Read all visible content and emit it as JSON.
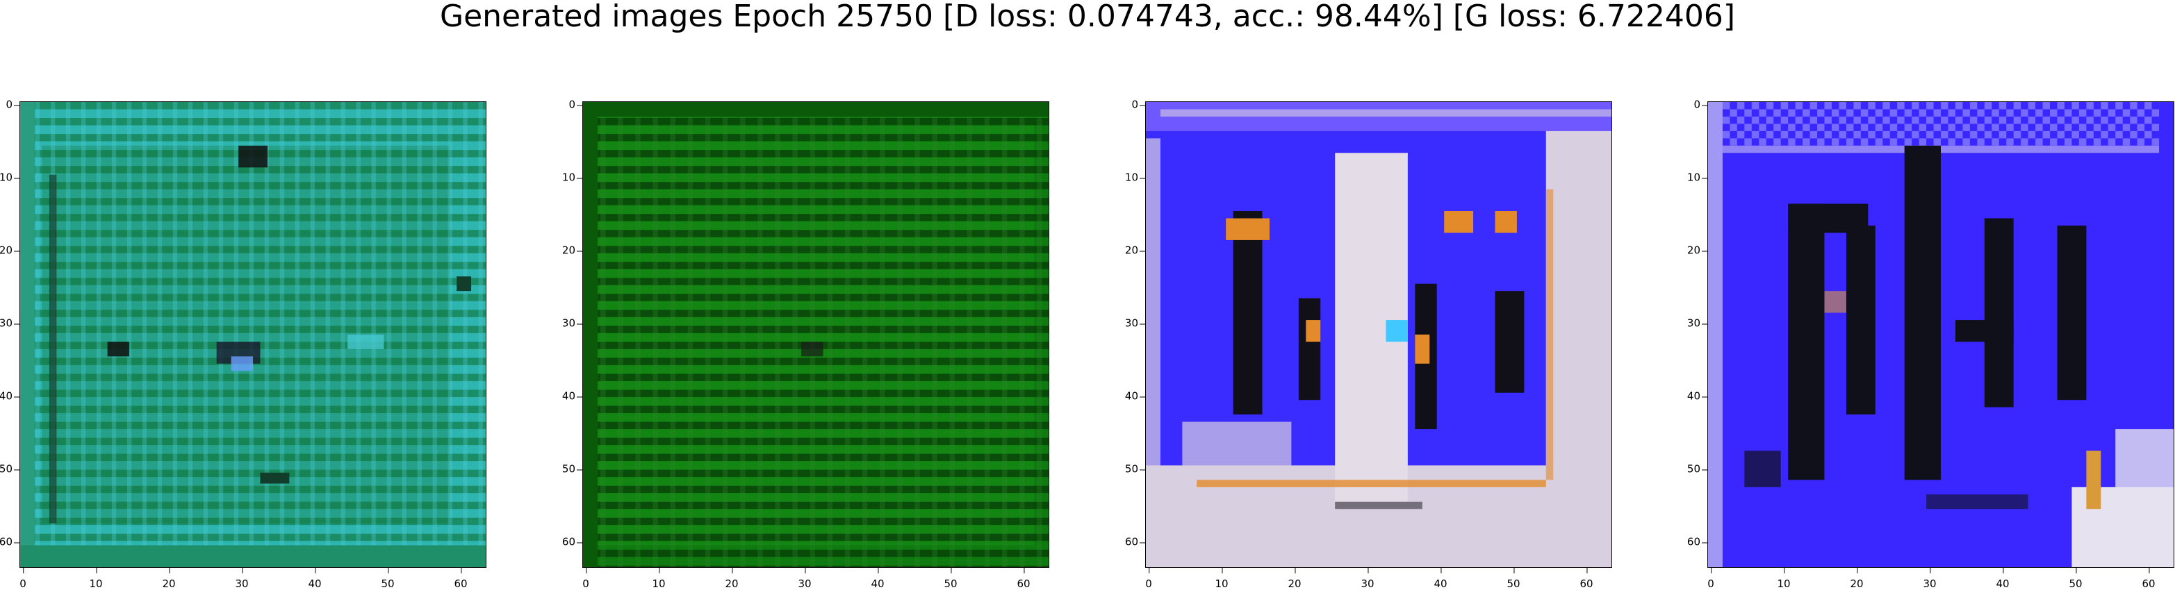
{
  "figure": {
    "title": "Generated images Epoch 25750 [D loss: 0.074743, acc.: 98.44%] [G loss: 6.722406]"
  },
  "panels": [
    {
      "name": "generated-image-1",
      "palette": [
        "#2fb5b0",
        "#1f8f6a",
        "#0b6b2a",
        "#46c8d0",
        "#123d2a"
      ],
      "x_ticks": [
        "0",
        "10",
        "20",
        "30",
        "40",
        "50",
        "60"
      ],
      "y_ticks": [
        "0",
        "10",
        "20",
        "30",
        "40",
        "50",
        "60"
      ]
    },
    {
      "name": "generated-image-2",
      "palette": [
        "#0f7a0f",
        "#0a5a0a",
        "#1c9a1c",
        "#042f04",
        "#2a8a2a"
      ],
      "x_ticks": [
        "0",
        "10",
        "20",
        "30",
        "40",
        "50",
        "60"
      ],
      "y_ticks": [
        "0",
        "10",
        "20",
        "30",
        "40",
        "50",
        "60"
      ]
    },
    {
      "name": "generated-image-3",
      "palette": [
        "#3a2cff",
        "#d8cfe0",
        "#e38a2a",
        "#111018",
        "#6f58ff"
      ],
      "x_ticks": [
        "0",
        "10",
        "20",
        "30",
        "40",
        "50",
        "60"
      ],
      "y_ticks": [
        "0",
        "10",
        "20",
        "30",
        "40",
        "50",
        "60"
      ]
    },
    {
      "name": "generated-image-4",
      "palette": [
        "#3a27ff",
        "#10101a",
        "#2c1ee0",
        "#e6e2ef",
        "#d99a3a"
      ],
      "x_ticks": [
        "0",
        "10",
        "20",
        "30",
        "40",
        "50",
        "60"
      ],
      "y_ticks": [
        "0",
        "10",
        "20",
        "30",
        "40",
        "50",
        "60"
      ]
    }
  ]
}
